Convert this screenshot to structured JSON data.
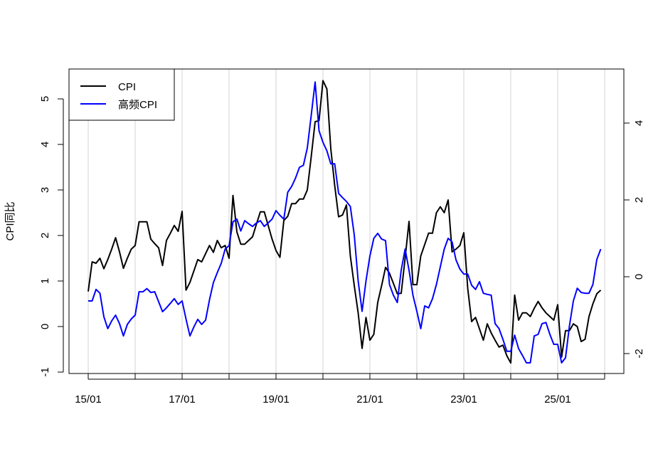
{
  "chart_data": {
    "type": "line",
    "title": "",
    "xlabel": "",
    "ylabel": "CPI同比",
    "x_start": "2015-01",
    "frequency": "monthly",
    "x_tick_labels": [
      "15/01",
      "17/01",
      "19/01",
      "21/01",
      "23/01",
      "25/01"
    ],
    "x_ticks": [
      "2015-01",
      "2016-01",
      "2017-01",
      "2018-01",
      "2019-01",
      "2020-01",
      "2021-01",
      "2022-01",
      "2023-01",
      "2024-01",
      "2025-01",
      "2026-01"
    ],
    "grid": "vertical at each year",
    "legend_position": "top-left",
    "left_axis": {
      "ylim": [
        -1.1,
        5.8
      ],
      "ticks": [
        -1,
        0,
        1,
        2,
        3,
        4,
        5
      ]
    },
    "right_axis": {
      "ylim": [
        -2.5,
        5.2
      ],
      "ticks": [
        -2,
        0,
        2,
        4
      ]
    },
    "series": [
      {
        "name": "CPI",
        "axis": "left",
        "color": "#000000",
        "values": [
          0.77,
          1.42,
          1.39,
          1.5,
          1.27,
          1.47,
          1.7,
          1.95,
          1.64,
          1.28,
          1.5,
          1.7,
          1.78,
          2.3,
          2.3,
          2.3,
          1.92,
          1.82,
          1.73,
          1.34,
          1.89,
          2.05,
          2.22,
          2.09,
          2.53,
          0.8,
          0.97,
          1.22,
          1.47,
          1.42,
          1.6,
          1.78,
          1.63,
          1.89,
          1.73,
          1.78,
          1.5,
          2.88,
          2.08,
          1.81,
          1.81,
          1.89,
          1.97,
          2.25,
          2.52,
          2.52,
          2.22,
          1.92,
          1.67,
          1.52,
          2.33,
          2.42,
          2.7,
          2.7,
          2.8,
          2.8,
          3.0,
          3.73,
          4.5,
          4.52,
          5.4,
          5.22,
          3.91,
          3.1,
          2.41,
          2.45,
          2.67,
          1.55,
          0.9,
          0.3,
          -0.48,
          0.2,
          -0.3,
          -0.17,
          0.53,
          0.9,
          1.3,
          1.17,
          0.95,
          0.72,
          0.73,
          1.5,
          2.31,
          0.92,
          0.92,
          1.55,
          1.8,
          2.05,
          2.05,
          2.5,
          2.63,
          2.5,
          2.78,
          1.64,
          1.7,
          1.78,
          2.06,
          0.84,
          0.11,
          0.2,
          -0.05,
          -0.3,
          0.06,
          -0.14,
          -0.3,
          -0.45,
          -0.41,
          -0.64,
          -0.8,
          0.69,
          0.14,
          0.3,
          0.3,
          0.22,
          0.4,
          0.55,
          0.41,
          0.3,
          0.22,
          0.14,
          0.48,
          -0.67,
          -0.09,
          -0.09,
          0.06,
          0,
          -0.33,
          -0.28,
          0.22,
          0.5,
          0.72,
          0.8
        ]
      },
      {
        "name": "高频CPI",
        "axis": "right",
        "color": "#0000FF",
        "values": [
          -0.63,
          -0.63,
          -0.33,
          -0.43,
          -1.04,
          -1.35,
          -1.15,
          -1.0,
          -1.22,
          -1.54,
          -1.24,
          -1.1,
          -1.0,
          -0.39,
          -0.39,
          -0.31,
          -0.41,
          -0.39,
          -0.65,
          -0.91,
          -0.81,
          -0.69,
          -0.57,
          -0.72,
          -0.63,
          -1.1,
          -1.54,
          -1.31,
          -1.11,
          -1.24,
          -1.13,
          -0.6,
          -0.15,
          0.11,
          0.35,
          0.72,
          0.81,
          1.43,
          1.5,
          1.19,
          1.46,
          1.38,
          1.31,
          1.4,
          1.46,
          1.31,
          1.4,
          1.5,
          1.72,
          1.6,
          1.5,
          2.2,
          2.35,
          2.57,
          2.85,
          2.9,
          3.35,
          4.2,
          5.07,
          3.8,
          3.5,
          3.28,
          2.94,
          2.94,
          2.17,
          2.06,
          1.96,
          1.83,
          1.09,
          -0.11,
          -0.9,
          -0.11,
          0.54,
          1.0,
          1.13,
          0.98,
          0.94,
          -0.2,
          -0.48,
          -0.67,
          0.17,
          0.72,
          0.17,
          -0.48,
          -0.9,
          -1.35,
          -0.76,
          -0.81,
          -0.57,
          -0.2,
          0.26,
          0.72,
          1.0,
          0.91,
          0.44,
          0.2,
          0.07,
          0.07,
          -0.22,
          -0.33,
          -0.13,
          -0.43,
          -0.46,
          -0.48,
          -1.22,
          -1.35,
          -1.63,
          -1.94,
          -1.94,
          -1.52,
          -1.87,
          -2.05,
          -2.24,
          -2.24,
          -1.54,
          -1.5,
          -1.22,
          -1.19,
          -1.5,
          -1.76,
          -1.76,
          -2.24,
          -2.11,
          -1.28,
          -0.63,
          -0.3,
          -0.41,
          -0.43,
          -0.43,
          -0.2,
          0.45,
          0.72
        ]
      }
    ]
  }
}
